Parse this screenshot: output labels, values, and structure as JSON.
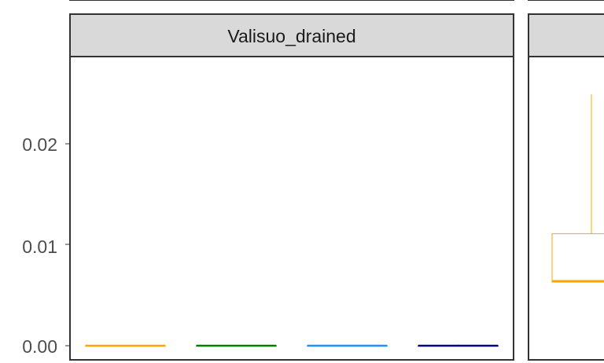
{
  "chart_data": {
    "type": "boxplot",
    "facets": [
      "Valisuo_drained"
    ],
    "y_ticks": [
      "0.00",
      "0.01",
      "0.02"
    ],
    "ylim": [
      0,
      0.029
    ],
    "grid": false,
    "groups": [
      {
        "color": "#FFA500"
      },
      {
        "color": "#008000"
      },
      {
        "color": "#1E90FF"
      },
      {
        "color": "#000080"
      }
    ],
    "panels": [
      {
        "facet": "Valisuo_drained",
        "boxes": [
          {
            "group": 0,
            "min": 0.0,
            "q1": 0.0,
            "median": 0.0,
            "q3": 0.0,
            "max": 0.0
          },
          {
            "group": 1,
            "min": 0.0,
            "q1": 0.0,
            "median": 0.0,
            "q3": 0.0,
            "max": 0.0
          },
          {
            "group": 2,
            "min": 0.0,
            "q1": 0.0,
            "median": 0.0,
            "q3": 0.0,
            "max": 0.0
          },
          {
            "group": 3,
            "min": 0.0,
            "q1": 0.0,
            "median": 0.0,
            "q3": 0.0,
            "max": 0.0001
          }
        ]
      },
      {
        "facet": "",
        "boxes": [
          {
            "group": 0,
            "min": 0.0063,
            "q1": 0.0063,
            "median": 0.0064,
            "q3": 0.0111,
            "max": 0.0249
          }
        ]
      }
    ]
  }
}
